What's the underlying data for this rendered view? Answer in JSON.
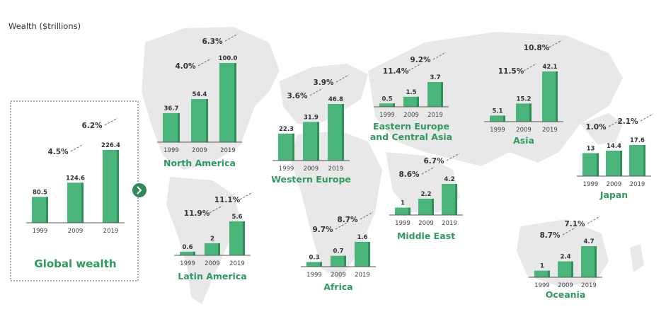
{
  "unit_label": "Wealth ($trillions)",
  "colors": {
    "bar": "#4ab57a",
    "region_label": "#2f9a5e",
    "nav_button": "#2f8a57",
    "map": "#e8e8e8"
  },
  "nav": {
    "icon": "chevron-right-icon"
  },
  "chart_data": [
    {
      "type": "bar",
      "title": "Global wealth",
      "categories": [
        "1999",
        "2009",
        "2019"
      ],
      "values": [
        80.5,
        124.6,
        226.4
      ],
      "growth_labels": [
        "4.5%",
        "6.2%"
      ]
    },
    {
      "type": "bar",
      "title": "North America",
      "categories": [
        "1999",
        "2009",
        "2019"
      ],
      "values": [
        36.7,
        54.4,
        100.0
      ],
      "value_labels": [
        "36.7",
        "54.4",
        "100.0"
      ],
      "growth_labels": [
        "4.0%",
        "6.3%"
      ]
    },
    {
      "type": "bar",
      "title": "Latin America",
      "categories": [
        "1999",
        "2009",
        "2019"
      ],
      "values": [
        0.6,
        2.0,
        5.6
      ],
      "growth_labels": [
        "11.9%",
        "11.1%"
      ]
    },
    {
      "type": "bar",
      "title": "Western Europe",
      "categories": [
        "1999",
        "2009",
        "2019"
      ],
      "values": [
        22.3,
        31.9,
        46.8
      ],
      "growth_labels": [
        "3.6%",
        "3.9%"
      ]
    },
    {
      "type": "bar",
      "title": "Africa",
      "categories": [
        "1999",
        "2009",
        "2019"
      ],
      "values": [
        0.3,
        0.7,
        1.6
      ],
      "growth_labels": [
        "9.7%",
        "8.7%"
      ]
    },
    {
      "type": "bar",
      "title": "Eastern Europe and Central Asia",
      "title_lines": [
        "Eastern Europe",
        "and Central Asia"
      ],
      "categories": [
        "1999",
        "2009",
        "2019"
      ],
      "values": [
        0.5,
        1.5,
        3.7
      ],
      "growth_labels": [
        "11.4%",
        "9.2%"
      ]
    },
    {
      "type": "bar",
      "title": "Middle East",
      "categories": [
        "1999",
        "2009",
        "2019"
      ],
      "values": [
        1.0,
        2.2,
        4.2
      ],
      "growth_labels": [
        "8.6%",
        "6.7%"
      ]
    },
    {
      "type": "bar",
      "title": "Asia",
      "categories": [
        "1999",
        "2009",
        "2019"
      ],
      "values": [
        5.1,
        15.2,
        42.1
      ],
      "growth_labels": [
        "11.5%",
        "10.8%"
      ]
    },
    {
      "type": "bar",
      "title": "Japan",
      "categories": [
        "1999",
        "2009",
        "2019"
      ],
      "values": [
        13.0,
        14.4,
        17.6
      ],
      "growth_labels": [
        "1.0%",
        "2.1%"
      ]
    },
    {
      "type": "bar",
      "title": "Oceania",
      "categories": [
        "1999",
        "2009",
        "2019"
      ],
      "values": [
        1.0,
        2.4,
        4.7
      ],
      "growth_labels": [
        "8.7%",
        "7.1%"
      ]
    }
  ]
}
